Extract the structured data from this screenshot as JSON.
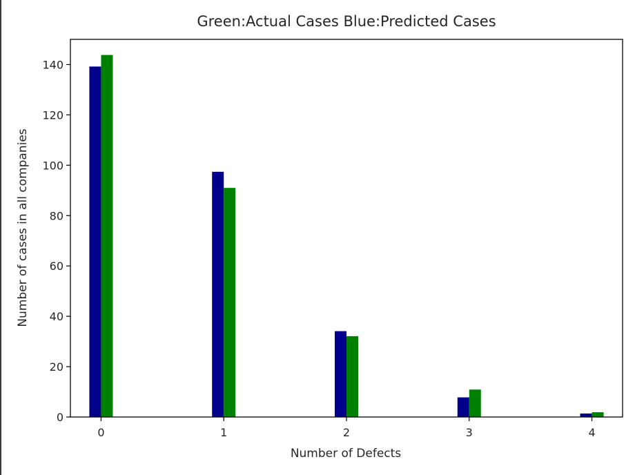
{
  "chart_data": {
    "type": "bar",
    "title": "Green:Actual Cases  Blue:Predicted Cases",
    "xlabel": "Number of Defects",
    "ylabel": "Number of cases in all companies",
    "categories": [
      0,
      1,
      2,
      3,
      4
    ],
    "x_tick_labels": [
      "0",
      "1",
      "2",
      "3",
      "4"
    ],
    "y_ticks": [
      0,
      20,
      40,
      60,
      80,
      100,
      120,
      140
    ],
    "y_tick_labels": [
      "0",
      "20",
      "40",
      "60",
      "80",
      "100",
      "120",
      "140"
    ],
    "xlim": [
      -0.25,
      4.25
    ],
    "ylim": [
      0,
      150
    ],
    "grid": false,
    "series": [
      {
        "values": [
          139.2,
          97.4,
          34.1,
          7.8,
          1.4
        ],
        "color": "#00008b"
      },
      {
        "values": [
          143.8,
          91,
          32.1,
          10.9,
          1.9
        ],
        "color": "#008000"
      }
    ]
  }
}
